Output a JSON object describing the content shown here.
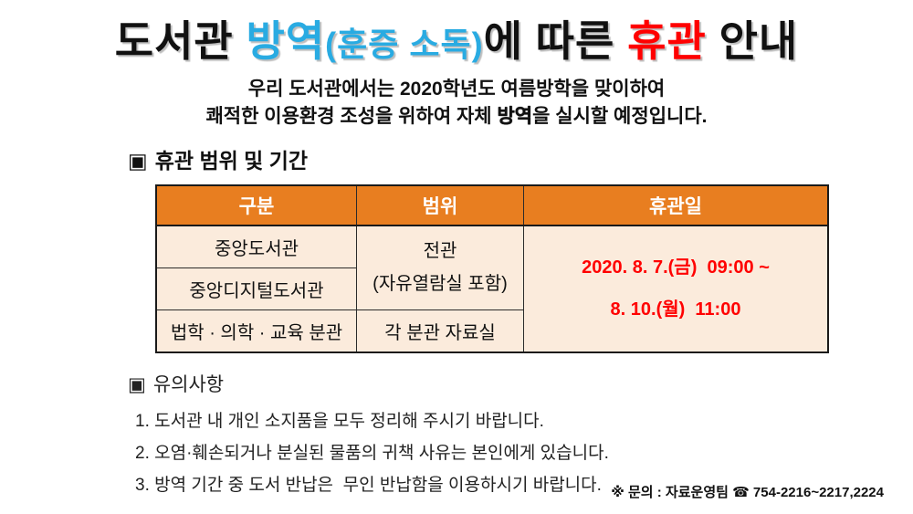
{
  "title": {
    "part1": "도서관 ",
    "part2_blue": "방역",
    "part2_blue_small": "(훈증 소독)",
    "part3": "에 따른 ",
    "part4_red": "휴관",
    "part5": " 안내"
  },
  "intro": {
    "line1": "우리 도서관에서는 2020학년도 여름방학을 맞이하여",
    "line2_pre": "쾌적한 이용환경 조성을 위하여 자체 ",
    "line2_bold": "방역",
    "line2_post": "을 실시할 예정입니다."
  },
  "section1": {
    "marker": "▣",
    "title": "휴관 범위 및 기간"
  },
  "table": {
    "headers": [
      "구분",
      "범위",
      "휴관일"
    ],
    "rows_col1": [
      "중앙도서관",
      "중앙디지털도서관",
      "법학 · 의학 · 교육 분관"
    ],
    "scope_merged_line1": "전관",
    "scope_merged_line2": "(자유열람실 포함)",
    "scope_row3": "각 분관 자료실",
    "closure_line1": "2020. 8. 7.(금)  09:00 ~",
    "closure_line2": "8. 10.(월)  11:00"
  },
  "section2": {
    "marker": "▣",
    "title": "유의사항",
    "items": [
      "1. 도서관 내 개인 소지품을 모두 정리해 주시기 바랍니다.",
      "2. 오염·훼손되거나 분실된 물품의 귀책 사유는 본인에게 있습니다.",
      "3. 방역 기간 중 도서 반납은  무인 반납함을 이용하시기 바랍니다."
    ]
  },
  "footer": {
    "text": "※ 문의 : 자료운영팀 ☎ 754-2216~2217,2224"
  },
  "colors": {
    "title_blue": "#29ABE2",
    "title_red": "#FF0000",
    "table_header_orange": "#E87E20",
    "table_body_peach": "#FBEBDC",
    "closure_date_red": "#FF0000",
    "border_dark": "#1A1A1A"
  }
}
